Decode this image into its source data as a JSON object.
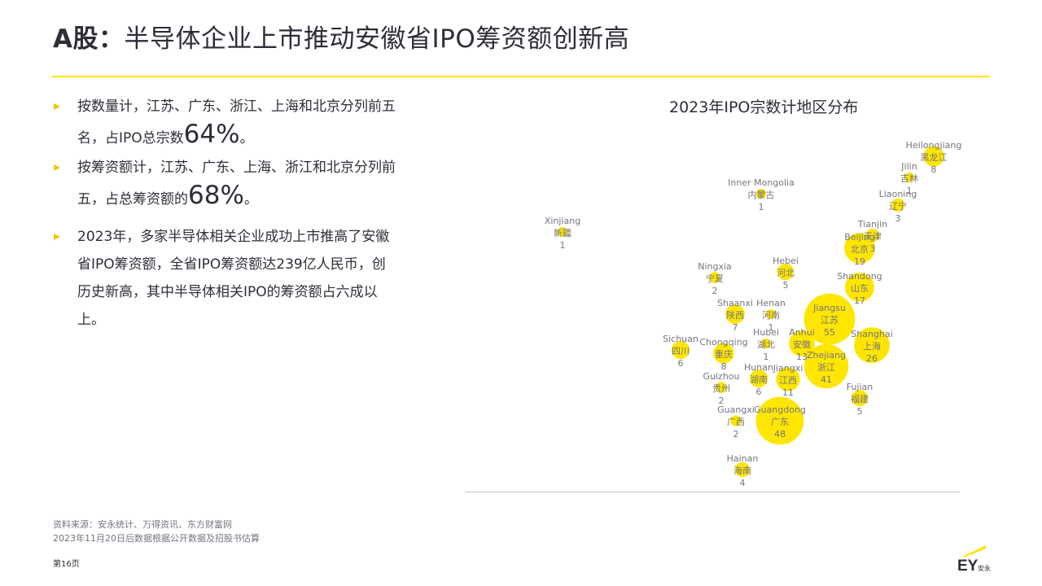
{
  "header": {
    "title_bold": "A股：",
    "title_rest": "半导体企业上市推动安徽省IPO筹资额创新高"
  },
  "bullets": [
    {
      "pre": "按数量计，江苏、广东、浙江、上海和北京分列前五名，占IPO总宗数",
      "big": "64%",
      "post": "。"
    },
    {
      "pre": "按筹资额计，江苏、广东、上海、浙江和北京分列前五，占总筹资额的",
      "big": "68%",
      "post": "。"
    },
    {
      "pre": "2023年，多家半导体相关企业成功上市推高了安徽省IPO筹资额，全省IPO筹资额达239亿人民币，创历史新高，其中半导体相关IPO的筹资额占六成以上。",
      "big": "",
      "post": ""
    }
  ],
  "chart_data": {
    "type": "scatter",
    "title": "2023年IPO宗数计地区分布",
    "bubble_color": "#ffe600",
    "label_color": "#747480",
    "points": [
      {
        "en": "Heilongjiang",
        "zh": "黑龙江",
        "value": 8
      },
      {
        "en": "Jilin",
        "zh": "吉林",
        "value": 1
      },
      {
        "en": "Liaoning",
        "zh": "辽宁",
        "value": 3
      },
      {
        "en": "Inner Mongolia",
        "zh": "内蒙古",
        "value": 1
      },
      {
        "en": "Xinjiang",
        "zh": "新疆",
        "value": 1
      },
      {
        "en": "Tianjin",
        "zh": "天津",
        "value": 3
      },
      {
        "en": "Beijing",
        "zh": "北京",
        "value": 19
      },
      {
        "en": "Hebei",
        "zh": "河北",
        "value": 5
      },
      {
        "en": "Ningxia",
        "zh": "宁夏",
        "value": 2
      },
      {
        "en": "Shandong",
        "zh": "山东",
        "value": 17
      },
      {
        "en": "Shaanxi",
        "zh": "陕西",
        "value": 7
      },
      {
        "en": "Henan",
        "zh": "河南",
        "value": 1
      },
      {
        "en": "Jiangsu",
        "zh": "江苏",
        "value": 55
      },
      {
        "en": "Anhui",
        "zh": "安徽",
        "value": 13
      },
      {
        "en": "Hubei",
        "zh": "湖北",
        "value": 1
      },
      {
        "en": "Shanghai",
        "zh": "上海",
        "value": 26
      },
      {
        "en": "Sichuan",
        "zh": "四川",
        "value": 6
      },
      {
        "en": "Chongqing",
        "zh": "重庆",
        "value": 8
      },
      {
        "en": "Zhejiang",
        "zh": "浙江",
        "value": 41
      },
      {
        "en": "Hunan",
        "zh": "湖南",
        "value": 6
      },
      {
        "en": "Jiangxi",
        "zh": "江西",
        "value": 11
      },
      {
        "en": "Guizhou",
        "zh": "贵州",
        "value": 2
      },
      {
        "en": "Fujian",
        "zh": "福建",
        "value": 5
      },
      {
        "en": "Guangxi",
        "zh": "广西",
        "value": 2
      },
      {
        "en": "Guangdong",
        "zh": "广东",
        "value": 48
      },
      {
        "en": "Hainan",
        "zh": "海南",
        "value": 4
      }
    ]
  },
  "footer": {
    "source_line1": "资料来源：安永统计、万得资讯、东方财富网",
    "source_line2": "2023年11月20日后数据根据公开数据及招股书估算",
    "page": "第16页",
    "logo_text": "EY",
    "logo_sub": "安永"
  }
}
